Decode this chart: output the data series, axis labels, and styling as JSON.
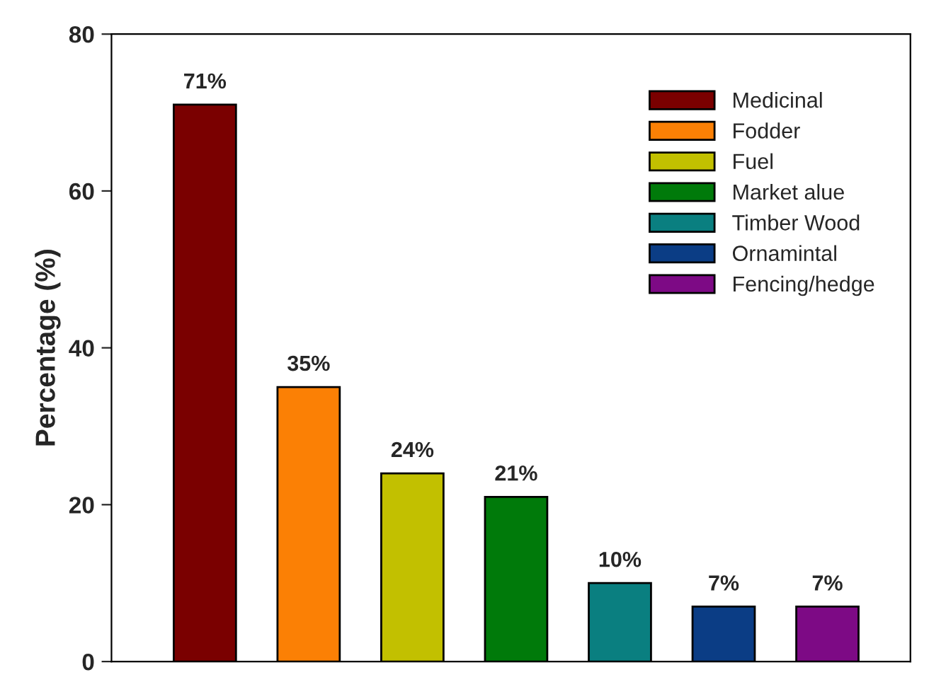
{
  "chart_data": {
    "type": "bar",
    "ylabel": "Percentage (%)",
    "categories": [
      null,
      null,
      null,
      null,
      null,
      null,
      null
    ],
    "series": [
      {
        "name": "Medicinal",
        "color": "#7a0000",
        "values": [
          71,
          null,
          null,
          null,
          null,
          null,
          null
        ],
        "value_labels": [
          "71%",
          null,
          null,
          null,
          null,
          null,
          null
        ]
      },
      {
        "name": "Fodder",
        "color": "#fb8005",
        "values": [
          null,
          35,
          null,
          null,
          null,
          null,
          null
        ],
        "value_labels": [
          null,
          "35%",
          null,
          null,
          null,
          null,
          null
        ]
      },
      {
        "name": "Fuel",
        "color": "#c2c000",
        "values": [
          null,
          null,
          24,
          null,
          null,
          null,
          null
        ],
        "value_labels": [
          null,
          null,
          "24%",
          null,
          null,
          null,
          null
        ]
      },
      {
        "name": "Market alue",
        "color": "#007a0a",
        "values": [
          null,
          null,
          null,
          21,
          null,
          null,
          null
        ],
        "value_labels": [
          null,
          null,
          null,
          "21%",
          null,
          null,
          null
        ]
      },
      {
        "name": "Timber Wood",
        "color": "#0a7f80",
        "values": [
          null,
          null,
          null,
          null,
          10,
          null,
          null
        ],
        "value_labels": [
          null,
          null,
          null,
          null,
          "10%",
          null,
          null
        ]
      },
      {
        "name": "Ornamintal",
        "color": "#0b3d85",
        "values": [
          null,
          null,
          null,
          null,
          null,
          7,
          null
        ],
        "value_labels": [
          null,
          null,
          null,
          null,
          null,
          "7%",
          null
        ]
      },
      {
        "name": "Fencing/hedge",
        "color": "#7d0a85",
        "values": [
          null,
          null,
          null,
          null,
          null,
          null,
          7
        ],
        "value_labels": [
          null,
          null,
          null,
          null,
          null,
          null,
          "7%"
        ]
      }
    ],
    "ylim": [
      0,
      80
    ],
    "yticks": [
      0,
      20,
      40,
      60,
      80
    ],
    "grid": false,
    "legend": "top right",
    "tick_labels": "y"
  }
}
